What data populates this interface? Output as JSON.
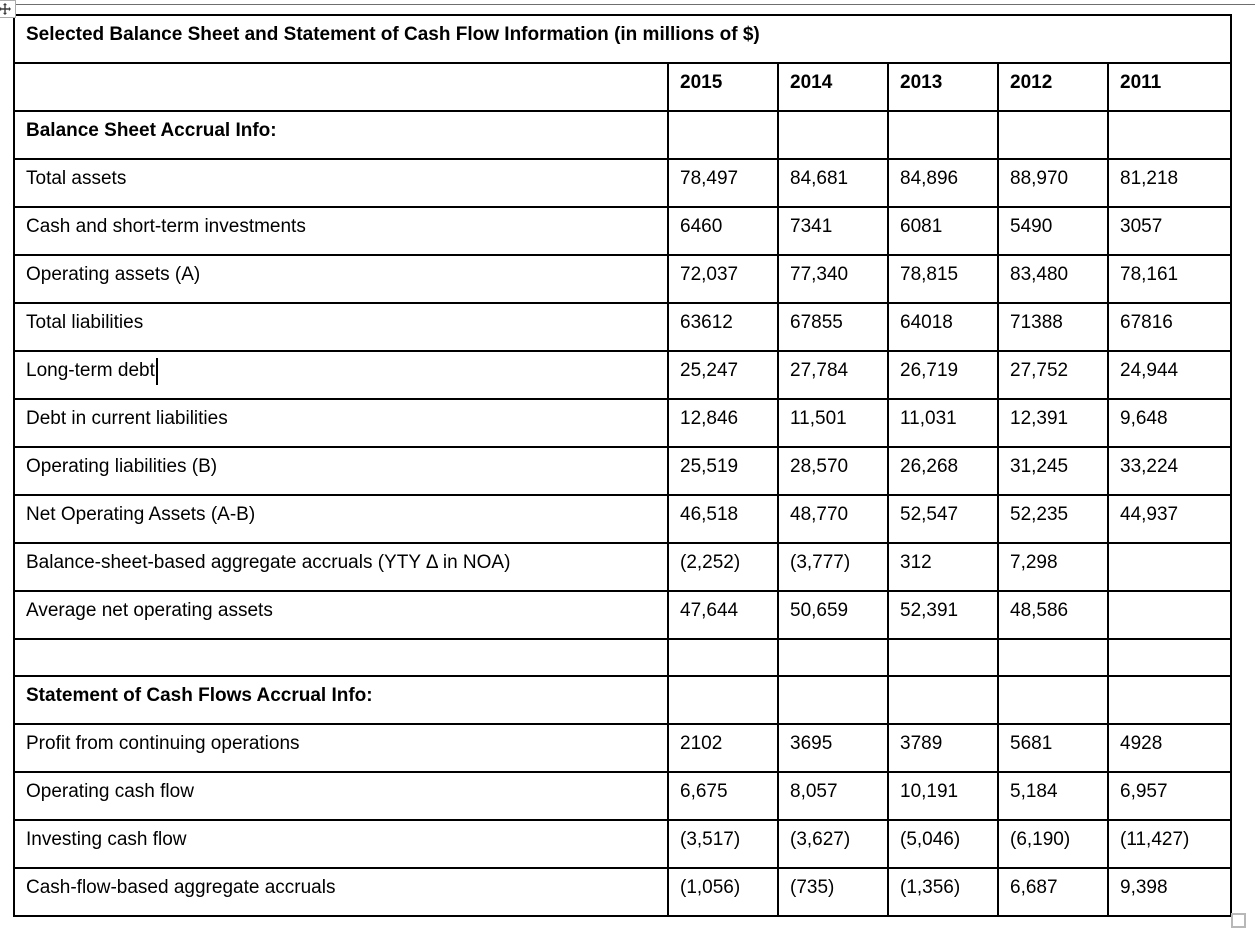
{
  "document": {
    "icons": {
      "move_handle": "four-way-move-arrow",
      "resize_handle": "small-square"
    }
  },
  "table": {
    "title": "Selected Balance Sheet and Statement of Cash Flow Information (in millions of $)",
    "columns": [
      "2015",
      "2014",
      "2013",
      "2012",
      "2011"
    ],
    "rows": [
      {
        "label": "Balance Sheet Accrual Info:",
        "style": "section",
        "values": [
          "",
          "",
          "",
          "",
          ""
        ]
      },
      {
        "label": "Total assets",
        "style": "data",
        "values": [
          "78,497",
          "84,681",
          "84,896",
          "88,970",
          "81,218"
        ]
      },
      {
        "label": "Cash and short-term investments",
        "style": "data",
        "values": [
          "6460",
          "7341",
          "6081",
          "5490",
          "3057"
        ]
      },
      {
        "label": "Operating assets (A)",
        "style": "data",
        "values": [
          "72,037",
          "77,340",
          "78,815",
          "83,480",
          "78,161"
        ]
      },
      {
        "label": "Total liabilities",
        "style": "data",
        "values": [
          "63612",
          "67855",
          "64018",
          "71388",
          "67816"
        ]
      },
      {
        "label": "Long-term debt",
        "style": "data",
        "cursor": true,
        "values": [
          "25,247",
          "27,784",
          "26,719",
          "27,752",
          "24,944"
        ]
      },
      {
        "label": "Debt in current liabilities",
        "style": "data",
        "values": [
          "12,846",
          "11,501",
          "11,031",
          "12,391",
          "9,648"
        ]
      },
      {
        "label": "Operating liabilities (B)",
        "style": "data",
        "values": [
          "25,519",
          "28,570",
          "26,268",
          "31,245",
          "33,224"
        ]
      },
      {
        "label": "Net Operating Assets (A-B)",
        "style": "data",
        "values": [
          "46,518",
          "48,770",
          "52,547",
          "52,235",
          "44,937"
        ]
      },
      {
        "label": "Balance-sheet-based aggregate accruals (YTY Δ in NOA)",
        "style": "data",
        "values": [
          "(2,252)",
          "(3,777)",
          "312",
          "7,298",
          ""
        ]
      },
      {
        "label": "Average net operating assets",
        "style": "data",
        "values": [
          "47,644",
          "50,659",
          "52,391",
          "48,586",
          ""
        ]
      },
      {
        "label": "",
        "style": "empty",
        "values": [
          "",
          "",
          "",
          "",
          ""
        ]
      },
      {
        "label": "Statement of Cash Flows Accrual Info:",
        "style": "section",
        "values": [
          "",
          "",
          "",
          "",
          ""
        ]
      },
      {
        "label": "Profit from continuing operations",
        "style": "data",
        "values": [
          "2102",
          "3695",
          "3789",
          "5681",
          "4928"
        ]
      },
      {
        "label": "Operating cash flow",
        "style": "data",
        "values": [
          "6,675",
          "8,057",
          "10,191",
          "5,184",
          "6,957"
        ]
      },
      {
        "label": "Investing cash flow",
        "style": "data",
        "values": [
          "(3,517)",
          "(3,627)",
          "(5,046)",
          "(6,190)",
          "(11,427)"
        ]
      },
      {
        "label": "Cash-flow-based aggregate accruals",
        "style": "data",
        "values": [
          "(1,056)",
          "(735)",
          "(1,356)",
          "6,687",
          "9,398"
        ]
      }
    ]
  }
}
